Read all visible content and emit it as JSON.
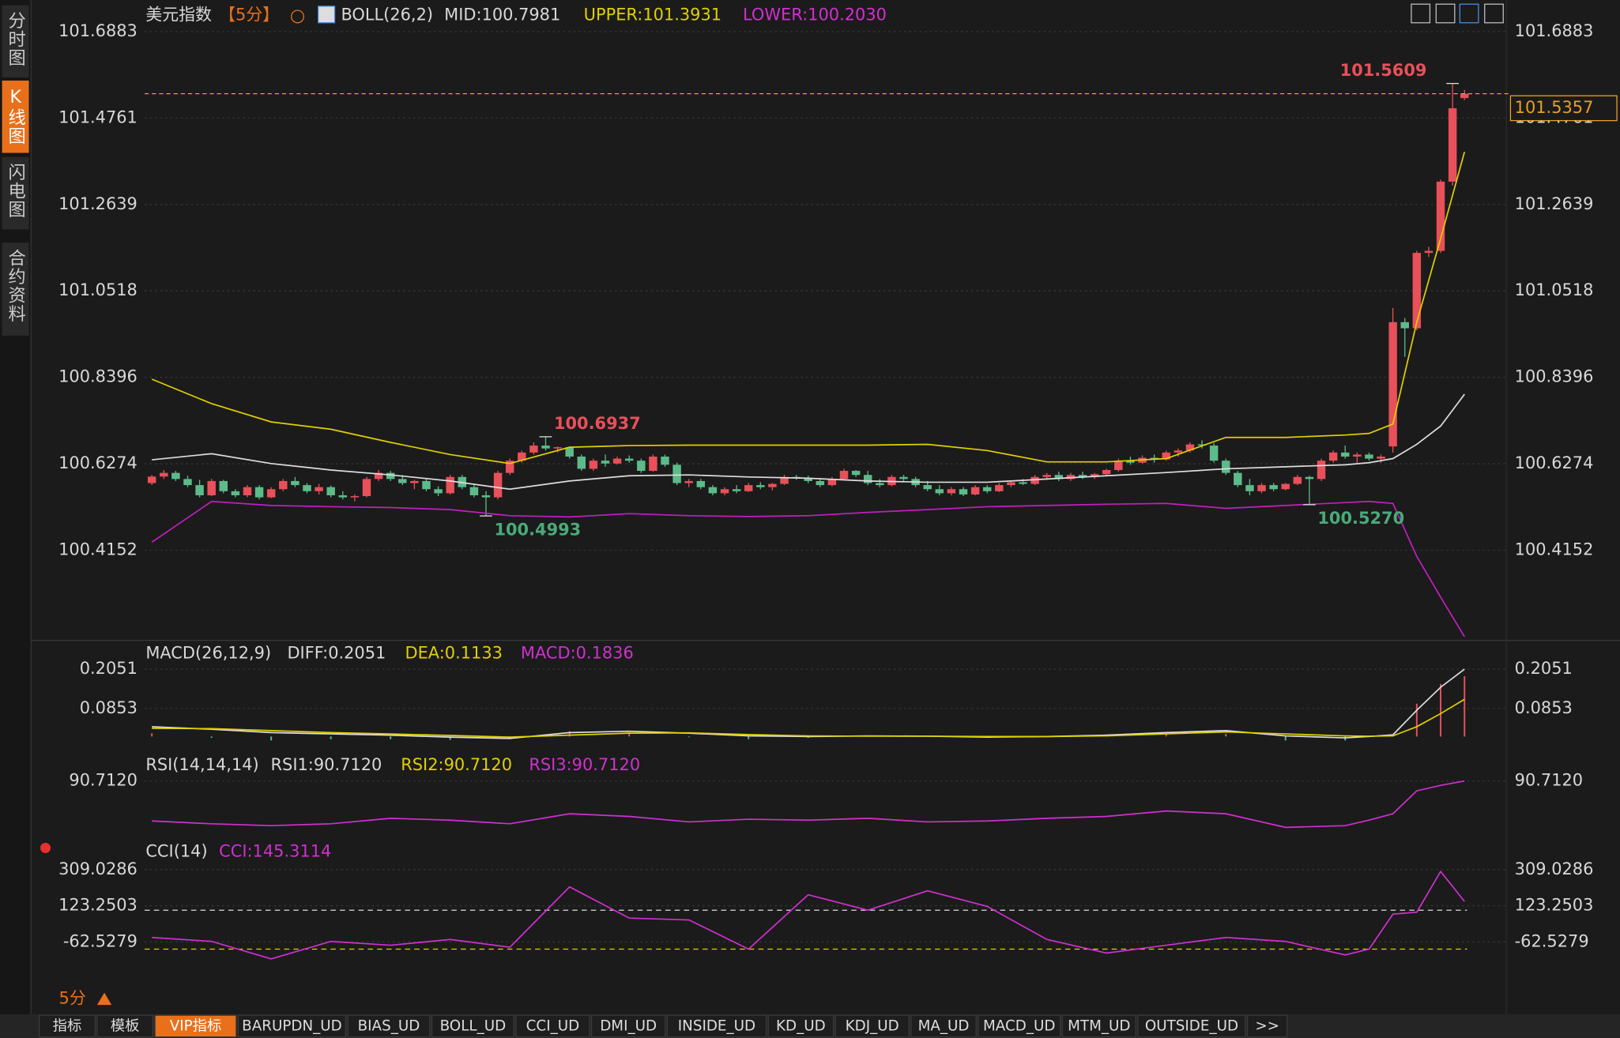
{
  "sidebar_tabs": [
    "分时图",
    "K线图",
    "闪电图",
    "合约资料"
  ],
  "header": {
    "symbol": "美元指数",
    "period": "【5分】",
    "indicator": "BOLL(26,2)",
    "mid": "MID:100.7981",
    "upper": "UPPER:101.3931",
    "lower": "LOWER:100.2030"
  },
  "price_pane": {
    "ylim": [
      100.199,
      101.715
    ],
    "yticks": [
      101.6883,
      101.4761,
      101.2639,
      101.0518,
      100.8396,
      100.6274,
      100.4152
    ],
    "last_price": 101.5357,
    "annotations": [
      101.5609,
      100.6937,
      100.4993,
      {
        "value": 100.527,
        "label": "100.5270"
      }
    ],
    "candles": [
      [
        100.58,
        100.6,
        100.575,
        100.596
      ],
      [
        100.596,
        100.612,
        100.59,
        100.605
      ],
      [
        100.605,
        100.61,
        100.585,
        100.59
      ],
      [
        100.59,
        100.598,
        100.57,
        100.575
      ],
      [
        100.575,
        100.588,
        100.545,
        100.55
      ],
      [
        100.55,
        100.59,
        100.548,
        100.585
      ],
      [
        100.585,
        100.588,
        100.555,
        100.56
      ],
      [
        100.56,
        100.565,
        100.545,
        100.55
      ],
      [
        100.55,
        100.575,
        100.545,
        100.57
      ],
      [
        100.57,
        100.575,
        100.54,
        100.545
      ],
      [
        100.545,
        100.57,
        100.543,
        100.565
      ],
      [
        100.565,
        100.59,
        100.56,
        100.585
      ],
      [
        100.585,
        100.595,
        100.57,
        100.575
      ],
      [
        100.575,
        100.58,
        100.555,
        100.56
      ],
      [
        100.56,
        100.578,
        100.552,
        100.57
      ],
      [
        100.57,
        100.574,
        100.545,
        100.55
      ],
      [
        100.55,
        100.56,
        100.54,
        100.545
      ],
      [
        100.545,
        100.552,
        100.535,
        100.548
      ],
      [
        100.548,
        100.595,
        100.545,
        100.59
      ],
      [
        100.59,
        100.612,
        100.585,
        100.605
      ],
      [
        100.605,
        100.61,
        100.585,
        100.59
      ],
      [
        100.59,
        100.6,
        100.575,
        100.58
      ],
      [
        100.58,
        100.588,
        100.565,
        100.585
      ],
      [
        100.585,
        100.59,
        100.56,
        100.565
      ],
      [
        100.565,
        100.572,
        100.548,
        100.555
      ],
      [
        100.555,
        100.6,
        100.552,
        100.595
      ],
      [
        100.595,
        100.6,
        100.565,
        100.57
      ],
      [
        100.57,
        100.575,
        100.545,
        100.55
      ],
      [
        100.55,
        100.56,
        100.4993,
        100.545
      ],
      [
        100.545,
        100.61,
        100.54,
        100.605
      ],
      [
        100.605,
        100.64,
        100.6,
        100.635
      ],
      [
        100.635,
        100.66,
        100.63,
        100.655
      ],
      [
        100.655,
        100.68,
        100.65,
        100.672
      ],
      [
        100.672,
        100.6937,
        100.66,
        100.665
      ],
      [
        100.665,
        100.67,
        100.655,
        100.668
      ],
      [
        100.668,
        100.67,
        100.64,
        100.645
      ],
      [
        100.645,
        100.65,
        100.61,
        100.615
      ],
      [
        100.615,
        100.64,
        100.61,
        100.635
      ],
      [
        100.635,
        100.65,
        100.62,
        100.628
      ],
      [
        100.628,
        100.645,
        100.625,
        100.64
      ],
      [
        100.64,
        100.648,
        100.63,
        100.635
      ],
      [
        100.635,
        100.64,
        100.605,
        100.61
      ],
      [
        100.61,
        100.65,
        100.608,
        100.645
      ],
      [
        100.645,
        100.65,
        100.62,
        100.625
      ],
      [
        100.625,
        100.63,
        100.575,
        100.58
      ],
      [
        100.58,
        100.59,
        100.57,
        100.585
      ],
      [
        100.585,
        100.59,
        100.565,
        100.57
      ],
      [
        100.57,
        100.575,
        100.55,
        100.555
      ],
      [
        100.555,
        100.57,
        100.55,
        100.565
      ],
      [
        100.565,
        100.575,
        100.555,
        100.56
      ],
      [
        100.56,
        100.58,
        100.558,
        100.575
      ],
      [
        100.575,
        100.582,
        100.565,
        100.57
      ],
      [
        100.57,
        100.58,
        100.562,
        100.578
      ],
      [
        100.578,
        100.6,
        100.575,
        100.595
      ],
      [
        100.595,
        100.6,
        100.588,
        100.592
      ],
      [
        100.592,
        100.598,
        100.58,
        100.585
      ],
      [
        100.585,
        100.59,
        100.57,
        100.575
      ],
      [
        100.575,
        100.595,
        100.572,
        100.59
      ],
      [
        100.59,
        100.615,
        100.588,
        100.61
      ],
      [
        100.61,
        100.612,
        100.595,
        100.6
      ],
      [
        100.6,
        100.61,
        100.575,
        100.58
      ],
      [
        100.58,
        100.59,
        100.57,
        100.575
      ],
      [
        100.575,
        100.6,
        100.572,
        100.595
      ],
      [
        100.595,
        100.6,
        100.585,
        100.59
      ],
      [
        100.59,
        100.595,
        100.57,
        100.575
      ],
      [
        100.575,
        100.585,
        100.56,
        100.565
      ],
      [
        100.565,
        100.575,
        100.55,
        100.555
      ],
      [
        100.555,
        100.57,
        100.55,
        100.565
      ],
      [
        100.565,
        100.57,
        100.548,
        100.552
      ],
      [
        100.552,
        100.575,
        100.55,
        100.57
      ],
      [
        100.57,
        100.575,
        100.555,
        100.56
      ],
      [
        100.56,
        100.58,
        100.558,
        100.575
      ],
      [
        100.575,
        100.585,
        100.57,
        100.582
      ],
      [
        100.582,
        100.59,
        100.575,
        100.578
      ],
      [
        100.578,
        100.6,
        100.575,
        100.595
      ],
      [
        100.595,
        100.605,
        100.588,
        100.6
      ],
      [
        100.6,
        100.608,
        100.585,
        100.59
      ],
      [
        100.59,
        100.605,
        100.585,
        100.6
      ],
      [
        100.6,
        100.608,
        100.59,
        100.595
      ],
      [
        100.595,
        100.605,
        100.59,
        100.602
      ],
      [
        100.602,
        100.615,
        100.598,
        100.612
      ],
      [
        100.612,
        100.64,
        100.608,
        100.635
      ],
      [
        100.635,
        100.645,
        100.625,
        100.63
      ],
      [
        100.63,
        100.648,
        100.628,
        100.642
      ],
      [
        100.642,
        100.65,
        100.63,
        100.638
      ],
      [
        100.638,
        100.66,
        100.635,
        100.655
      ],
      [
        100.655,
        100.665,
        100.645,
        100.66
      ],
      [
        100.66,
        100.68,
        100.655,
        100.675
      ],
      [
        100.675,
        100.685,
        100.665,
        100.672
      ],
      [
        100.672,
        100.678,
        100.63,
        100.635
      ],
      [
        100.635,
        100.64,
        100.6,
        100.605
      ],
      [
        100.605,
        100.61,
        100.57,
        100.575
      ],
      [
        100.575,
        100.59,
        100.55,
        100.56
      ],
      [
        100.56,
        100.58,
        100.555,
        100.575
      ],
      [
        100.575,
        100.58,
        100.56,
        100.565
      ],
      [
        100.565,
        100.58,
        100.562,
        100.578
      ],
      [
        100.578,
        100.6,
        100.575,
        100.595
      ],
      [
        100.595,
        100.598,
        100.527,
        100.59
      ],
      [
        100.59,
        100.64,
        100.585,
        100.635
      ],
      [
        100.635,
        100.66,
        100.63,
        100.655
      ],
      [
        100.655,
        100.672,
        100.64,
        100.645
      ],
      [
        100.645,
        100.655,
        100.63,
        100.65
      ],
      [
        100.65,
        100.655,
        100.635,
        100.64
      ],
      [
        100.64,
        100.65,
        100.63,
        100.645
      ],
      [
        100.67,
        101.01,
        100.655,
        100.975
      ],
      [
        100.975,
        100.985,
        100.89,
        100.96
      ],
      [
        100.96,
        101.15,
        100.955,
        101.145
      ],
      [
        101.145,
        101.16,
        101.135,
        101.15
      ],
      [
        101.15,
        101.325,
        101.145,
        101.32
      ],
      [
        101.32,
        101.5609,
        101.31,
        101.5
      ],
      [
        101.525,
        101.545,
        101.52,
        101.5357
      ]
    ],
    "boll": {
      "x": [
        0,
        5,
        10,
        15,
        20,
        25,
        30,
        35,
        40,
        45,
        50,
        55,
        60,
        65,
        70,
        75,
        80,
        85,
        90,
        95,
        100,
        102,
        104,
        106,
        108,
        110
      ],
      "upper": [
        100.835,
        100.775,
        100.73,
        100.712,
        100.68,
        100.65,
        100.628,
        100.668,
        100.672,
        100.673,
        100.673,
        100.673,
        100.673,
        100.675,
        100.66,
        100.632,
        100.632,
        100.64,
        100.692,
        100.692,
        100.698,
        100.702,
        100.725,
        100.975,
        101.18,
        101.3931
      ],
      "mid": [
        100.637,
        100.652,
        100.628,
        100.612,
        100.6,
        100.585,
        100.565,
        100.585,
        100.598,
        100.6,
        100.595,
        100.592,
        100.585,
        100.582,
        100.582,
        100.59,
        100.598,
        100.606,
        100.615,
        100.62,
        100.625,
        100.63,
        100.64,
        100.675,
        100.72,
        100.7981
      ],
      "lower": [
        100.435,
        100.535,
        100.525,
        100.522,
        100.52,
        100.515,
        100.5,
        100.497,
        100.505,
        100.5,
        100.498,
        100.5,
        100.508,
        100.515,
        100.522,
        100.525,
        100.528,
        100.53,
        100.518,
        100.525,
        100.532,
        100.535,
        100.53,
        100.4,
        100.3,
        100.203
      ]
    }
  },
  "macd_pane": {
    "legend": [
      "MACD(26,12,9)",
      "DIFF:0.2051",
      "DEA:0.1133",
      "MACD:0.1836"
    ],
    "ylim": [
      -0.028,
      0.23
    ],
    "yticks": [
      0.2051,
      0.0853
    ],
    "x": [
      0,
      5,
      10,
      15,
      20,
      25,
      30,
      35,
      40,
      45,
      50,
      55,
      60,
      65,
      70,
      75,
      80,
      85,
      90,
      95,
      100,
      102,
      104,
      106,
      108,
      110
    ],
    "diff": [
      0.03,
      0.022,
      0.012,
      0.008,
      0.004,
      -0.002,
      -0.006,
      0.012,
      0.016,
      0.01,
      0.002,
      0.0,
      0.002,
      0.001,
      -0.002,
      0.0,
      0.004,
      0.012,
      0.018,
      0.002,
      -0.004,
      0.0,
      0.005,
      0.08,
      0.15,
      0.2051
    ],
    "dea": [
      0.025,
      0.024,
      0.018,
      0.012,
      0.008,
      0.003,
      -0.002,
      0.004,
      0.01,
      0.011,
      0.006,
      0.002,
      0.001,
      0.001,
      0.0,
      0.0,
      0.002,
      0.008,
      0.014,
      0.008,
      0.002,
      0.001,
      0.002,
      0.03,
      0.07,
      0.1133
    ],
    "macd": [
      0.01,
      -0.004,
      -0.012,
      -0.008,
      -0.008,
      -0.01,
      -0.008,
      0.016,
      0.012,
      -0.002,
      -0.008,
      -0.004,
      0.002,
      0.0,
      -0.004,
      0.0,
      0.004,
      0.008,
      0.008,
      -0.012,
      -0.012,
      -0.002,
      0.006,
      0.1,
      0.16,
      0.1836
    ]
  },
  "rsi_pane": {
    "legend": [
      "RSI(14,14,14)",
      "RSI1:90.7120",
      "RSI2:90.7120",
      "RSI3:90.7120"
    ],
    "ylim": [
      30,
      100
    ],
    "yticks": [
      {
        "value": 90.712,
        "label": "90.7120"
      }
    ],
    "x": [
      0,
      5,
      10,
      15,
      20,
      25,
      30,
      35,
      40,
      45,
      50,
      55,
      60,
      65,
      70,
      75,
      80,
      85,
      90,
      95,
      100,
      102,
      104,
      106,
      108,
      110
    ],
    "values": [
      47,
      44,
      42,
      44,
      50,
      48,
      44,
      55,
      52,
      46,
      49,
      48,
      50,
      46,
      47,
      50,
      52,
      58,
      55,
      40,
      42,
      48,
      55,
      80,
      86,
      90.712
    ]
  },
  "cci_pane": {
    "legend": [
      "CCI(14)",
      "CCI:145.3114"
    ],
    "ylim": [
      -185,
      346
    ],
    "yticks": [
      309.0286,
      123.2503,
      -62.5279
    ],
    "ref_lines": [
      100,
      -100
    ],
    "x": [
      0,
      5,
      10,
      15,
      20,
      25,
      30,
      35,
      40,
      45,
      50,
      55,
      60,
      65,
      70,
      75,
      80,
      85,
      90,
      95,
      100,
      102,
      104,
      106,
      108,
      110
    ],
    "values": [
      -40,
      -60,
      -150,
      -60,
      -80,
      -50,
      -90,
      220,
      60,
      50,
      -100,
      180,
      100,
      200,
      120,
      -50,
      -120,
      -80,
      -40,
      -60,
      -130,
      -100,
      80,
      90,
      300,
      145.3114
    ]
  },
  "footer": {
    "period_label": "5分",
    "tabs": [
      "指标",
      "模板",
      "VIP指标",
      "BARUPDN_UD",
      "BIAS_UD",
      "BOLL_UD",
      "CCI_UD",
      "DMI_UD",
      "INSIDE_UD",
      "KD_UD",
      "KDJ_UD",
      "MA_UD",
      "MACD_UD",
      "MTM_UD",
      "OUTSIDE_UD",
      ">>"
    ]
  }
}
